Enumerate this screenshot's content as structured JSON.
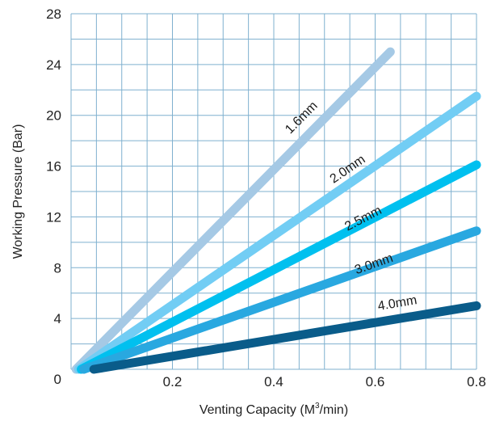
{
  "chart_data": {
    "type": "line",
    "xlabel_main": "Venting Capacity (M",
    "xlabel_sup": "3",
    "xlabel_tail": "/min)",
    "ylabel": "Working Pressure (Bar)",
    "xlim": [
      0,
      0.8
    ],
    "ylim": [
      0,
      28
    ],
    "x_ticks": [
      0.2,
      0.4,
      0.6,
      0.8
    ],
    "x_tick_labels": [
      "0.2",
      "0.4",
      "0.6",
      "0.8"
    ],
    "y_ticks": [
      0,
      4,
      8,
      12,
      16,
      20,
      24,
      28
    ],
    "y_tick_labels": [
      "0",
      "4",
      "8",
      "12",
      "16",
      "20",
      "24",
      "28"
    ],
    "grid": true,
    "series": [
      {
        "name": "1.6mm",
        "color": "#a5c9e5",
        "points": [
          [
            0.01,
            0.0
          ],
          [
            0.63,
            25.0
          ]
        ],
        "label_at": [
          0.46,
          19.6
        ]
      },
      {
        "name": "2.0mm",
        "color": "#72cdf4",
        "points": [
          [
            0.015,
            0.0
          ],
          [
            0.8,
            21.5
          ]
        ],
        "label_at": [
          0.55,
          15.5
        ]
      },
      {
        "name": "2.5mm",
        "color": "#00c0ef",
        "points": [
          [
            0.02,
            0.0
          ],
          [
            0.8,
            16.1
          ]
        ],
        "label_at": [
          0.58,
          11.6
        ]
      },
      {
        "name": "3.0mm",
        "color": "#29a8e0",
        "points": [
          [
            0.025,
            0.0
          ],
          [
            0.8,
            10.9
          ]
        ],
        "label_at": [
          0.6,
          8.0
        ]
      },
      {
        "name": "4.0mm",
        "color": "#0a5c8a",
        "points": [
          [
            0.045,
            0.0
          ],
          [
            0.8,
            5.0
          ]
        ],
        "label_at": [
          0.645,
          4.9
        ]
      }
    ]
  }
}
